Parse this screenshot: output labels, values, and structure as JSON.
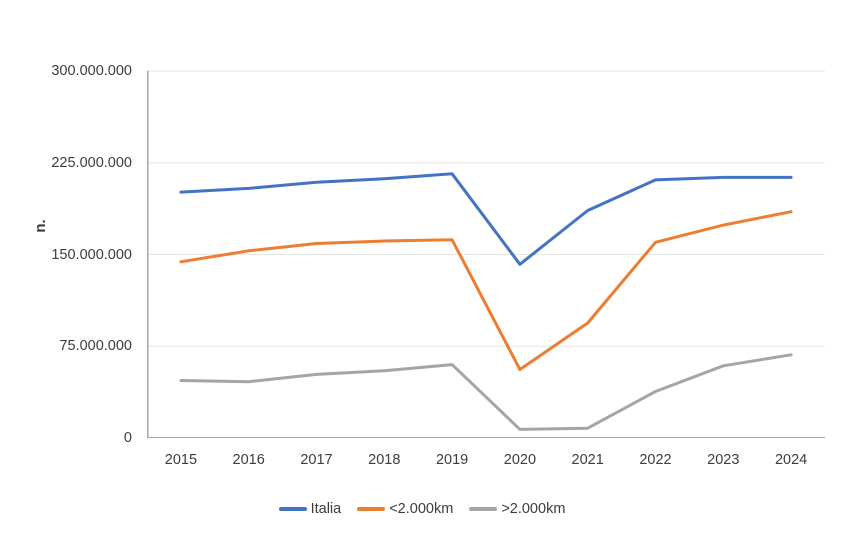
{
  "theme": {
    "background": "#ffffff",
    "axis_color": "#a6a6a6",
    "grid_color": "#e5e5e5",
    "text_color": "#3d3d3d"
  },
  "chart_data": {
    "type": "line",
    "title": "",
    "xlabel": "",
    "ylabel": "n.",
    "x": [
      "2015",
      "2016",
      "2017",
      "2018",
      "2019",
      "2020",
      "2021",
      "2022",
      "2023",
      "2024"
    ],
    "series": [
      {
        "name": "Italia",
        "color": "#4472C4",
        "values": [
          201000000,
          204000000,
          209000000,
          212000000,
          216000000,
          142000000,
          186000000,
          211000000,
          213000000,
          213000000
        ]
      },
      {
        "name": "<2.000km",
        "color": "#ED7D31",
        "values": [
          144000000,
          153000000,
          159000000,
          161000000,
          162000000,
          56000000,
          94000000,
          160000000,
          174000000,
          185000000
        ]
      },
      {
        "name": ">2.000km",
        "color": "#A5A5A5",
        "values": [
          47000000,
          46000000,
          52000000,
          55000000,
          60000000,
          7000000,
          8000000,
          38000000,
          59000000,
          68000000
        ]
      }
    ],
    "ylim": [
      0,
      300000000
    ],
    "y_ticks": [
      {
        "value": 300000000,
        "label": "300.000.000"
      },
      {
        "value": 225000000,
        "label": "225.000.000"
      },
      {
        "value": 150000000,
        "label": "150.000.000"
      },
      {
        "value": 75000000,
        "label": "75.000.000"
      },
      {
        "value": 0,
        "label": "0"
      }
    ],
    "grid": true,
    "legend_position": "bottom"
  }
}
